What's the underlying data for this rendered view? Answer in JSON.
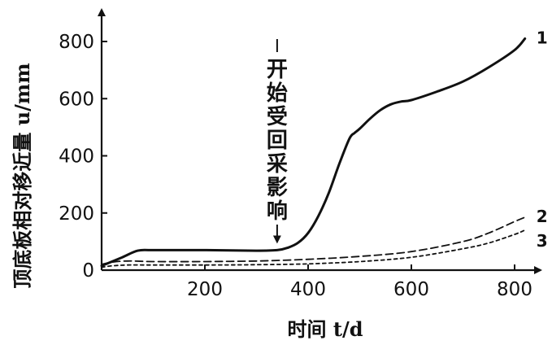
{
  "chart_data": {
    "type": "line",
    "xlabel": "时间 t/d",
    "ylabel": "顶底板相对移近量 u/mm",
    "xticks": [
      200,
      400,
      600,
      800
    ],
    "yticks": [
      0,
      200,
      400,
      600,
      800
    ],
    "xlim": [
      0,
      850
    ],
    "ylim": [
      0,
      900
    ],
    "grid": false,
    "annotation": {
      "text": "开始受回采影响",
      "x": 340,
      "y": 70
    },
    "series": [
      {
        "name": "1",
        "style": "solid",
        "x": [
          0,
          40,
          70,
          100,
          200,
          300,
          340,
          360,
          380,
          400,
          420,
          440,
          460,
          480,
          490,
          500,
          520,
          540,
          560,
          580,
          600,
          650,
          700,
          750,
          800,
          820
        ],
        "y": [
          15,
          45,
          68,
          70,
          70,
          68,
          70,
          78,
          95,
          130,
          190,
          270,
          370,
          460,
          480,
          495,
          530,
          560,
          580,
          590,
          595,
          625,
          660,
          710,
          770,
          810
        ]
      },
      {
        "name": "2",
        "style": "dashed",
        "x": [
          0,
          20,
          50,
          100,
          200,
          300,
          400,
          500,
          600,
          700,
          750,
          800,
          820
        ],
        "y": [
          20,
          28,
          32,
          30,
          30,
          32,
          38,
          48,
          65,
          100,
          130,
          170,
          185
        ]
      },
      {
        "name": "3",
        "style": "dotted",
        "x": [
          0,
          20,
          50,
          100,
          200,
          300,
          400,
          500,
          600,
          700,
          750,
          800,
          820
        ],
        "y": [
          10,
          15,
          18,
          18,
          18,
          19,
          22,
          30,
          45,
          75,
          95,
          125,
          140
        ]
      }
    ]
  }
}
